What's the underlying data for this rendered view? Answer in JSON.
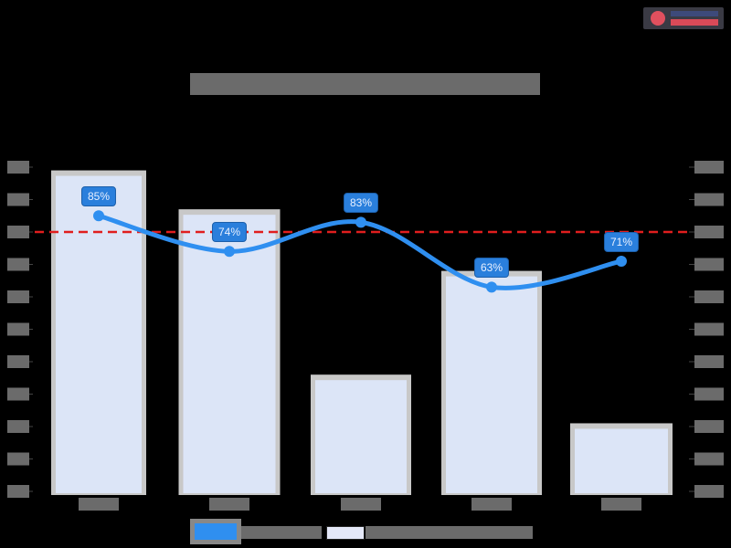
{
  "header": {
    "title": "[redacted title]",
    "logo": "brand-logo"
  },
  "legend": {
    "items": [
      {
        "label": "[redacted line series]",
        "swatch": "#2f8ff0"
      },
      {
        "label": "[redacted bar series]",
        "swatch": "#e4e8f8"
      }
    ]
  },
  "colors": {
    "line": "#2f8ff0",
    "bar_fill": "#dce5f7",
    "bar_border": "#c8c8c8",
    "target_line": "#e01e1e",
    "label_bg": "#2a7fdc"
  },
  "chart_data": {
    "type": "bar",
    "title": "[redacted]",
    "categories": [
      "[cat1]",
      "[cat2]",
      "[cat3]",
      "[cat4]",
      "[cat5]"
    ],
    "series": [
      {
        "name": "[bar series, right axis, relative %]",
        "type": "bar",
        "axis": "right",
        "values": [
          99,
          87,
          36,
          68,
          21
        ]
      },
      {
        "name": "[line series, left axis %]",
        "type": "line",
        "axis": "left",
        "values": [
          85,
          74,
          83,
          63,
          71
        ],
        "labels": [
          "85%",
          "74%",
          "83%",
          "63%",
          "71%"
        ]
      }
    ],
    "reference_line": {
      "value": 80,
      "style": "dashed",
      "color": "#e01e1e"
    },
    "left_axis": {
      "ylim": [
        0,
        100
      ],
      "ticks": 11
    },
    "right_axis": {
      "ticks": 11,
      "labels": "redacted"
    },
    "xlabel": "",
    "ylabel": "",
    "grid": false,
    "legend_position": "bottom"
  }
}
